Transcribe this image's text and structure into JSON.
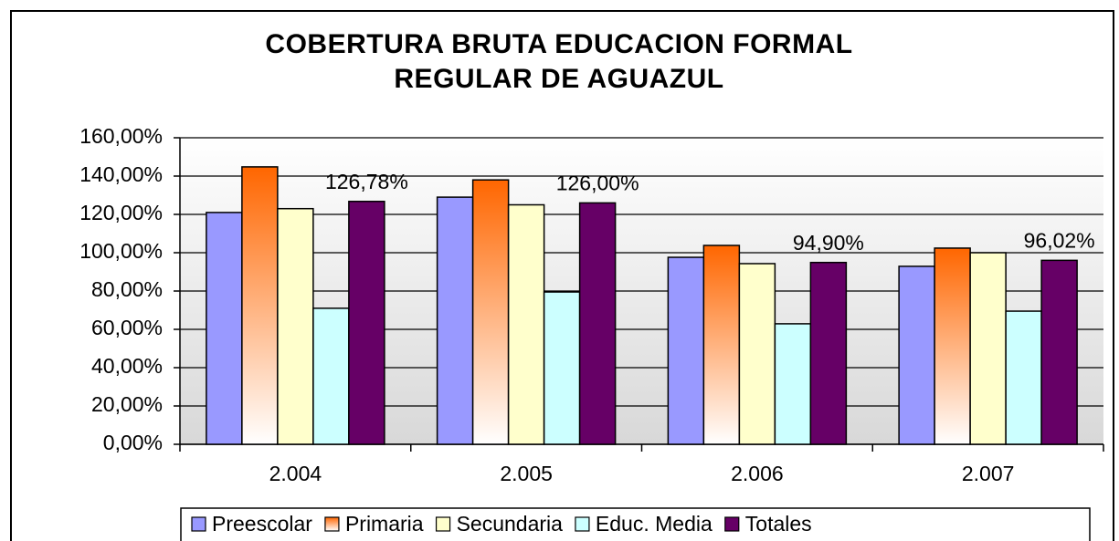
{
  "chart_data": {
    "type": "bar",
    "title": [
      "COBERTURA BRUTA EDUCACION FORMAL",
      "REGULAR DE AGUAZUL"
    ],
    "categories": [
      "2.004",
      "2.005",
      "2.006",
      "2.007"
    ],
    "series": [
      {
        "name": "Preescolar",
        "color": "#9999ff",
        "values": [
          121,
          129,
          97.6,
          92.9
        ]
      },
      {
        "name": "Primaria",
        "color": "#ff6600",
        "values": [
          144.8,
          138,
          103.8,
          102.4
        ]
      },
      {
        "name": "Secundaria",
        "color": "#ffffcc",
        "values": [
          123,
          125,
          94.3,
          100
        ]
      },
      {
        "name": "Educ. Media",
        "color": "#ccffff",
        "values": [
          71,
          79.5,
          62.9,
          69.5
        ]
      },
      {
        "name": "Totales",
        "color": "#660066",
        "values": [
          126.78,
          126,
          94.9,
          96.02
        ],
        "value_labels": [
          "126,78%",
          "126,00%",
          "94,90%",
          "96,02%"
        ]
      }
    ],
    "ylim": [
      0,
      160
    ],
    "yticks": [
      {
        "value": 0,
        "label": "0,00%"
      },
      {
        "value": 20,
        "label": "20,00%"
      },
      {
        "value": 40,
        "label": "40,00%"
      },
      {
        "value": 60,
        "label": "60,00%"
      },
      {
        "value": 80,
        "label": "80,00%"
      },
      {
        "value": 100,
        "label": "100,00%"
      },
      {
        "value": 120,
        "label": "120,00%"
      },
      {
        "value": 140,
        "label": "140,00%"
      },
      {
        "value": 160,
        "label": "160,00%"
      }
    ],
    "grid": true,
    "legend": "bottom"
  }
}
